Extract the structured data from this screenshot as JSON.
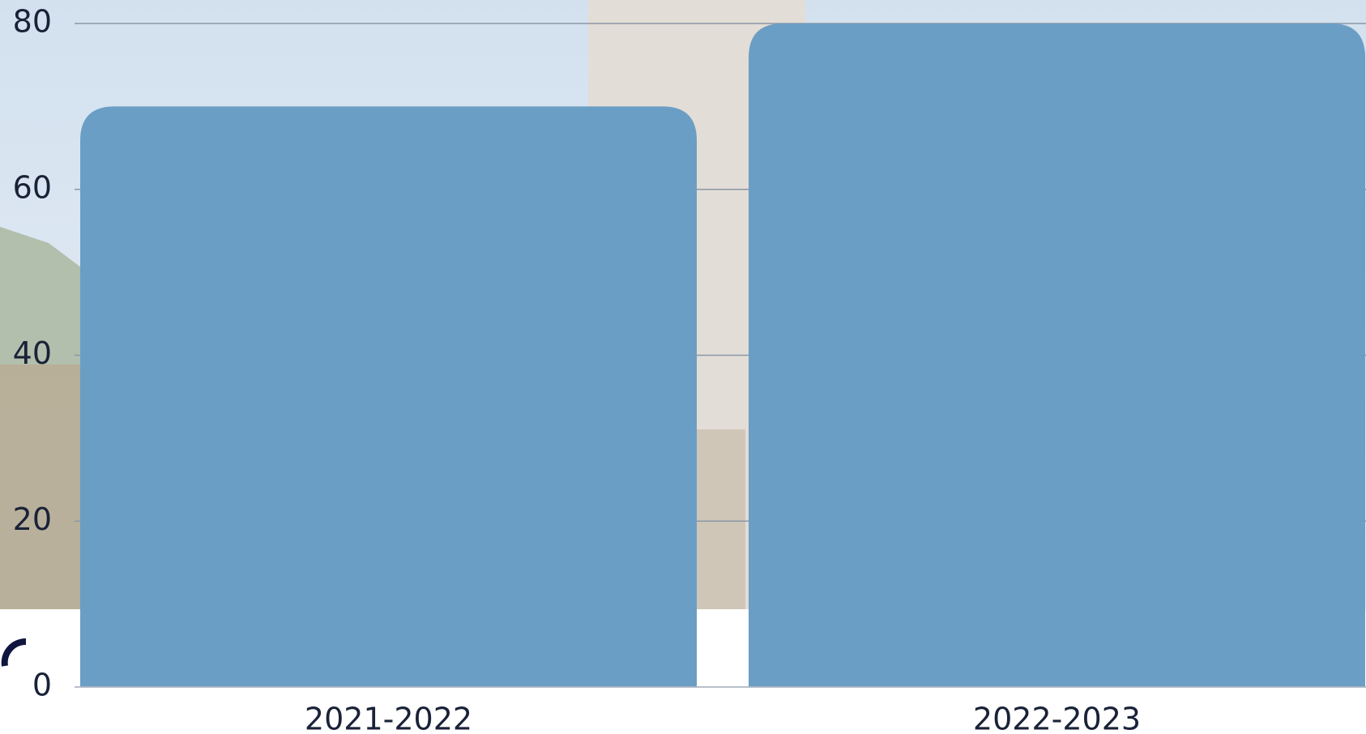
{
  "chart_data": {
    "type": "bar",
    "categories": [
      "2021-2022",
      "2022-2023"
    ],
    "values": [
      70,
      80
    ],
    "color": "#6b9ec4",
    "ylim": [
      0,
      80
    ],
    "yticks": [
      0,
      20,
      40,
      60,
      80
    ],
    "grid": true
  }
}
